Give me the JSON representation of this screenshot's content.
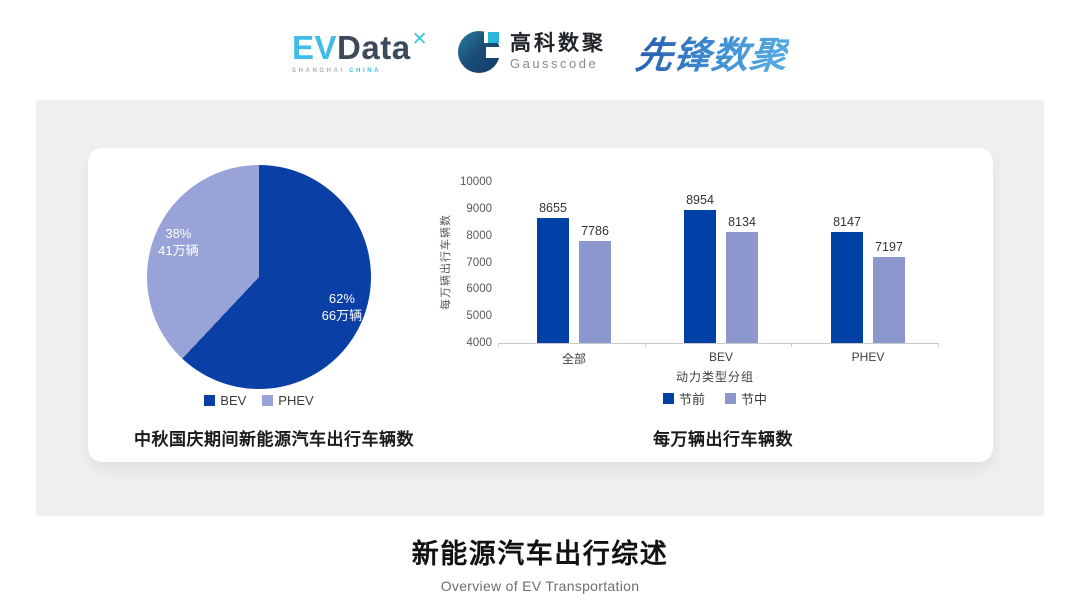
{
  "header": {
    "evdata": {
      "ev": "EV",
      "data": "Data",
      "mark": "✕",
      "sub_gray": "SHANGHAI",
      "sub_cyan": "CHINA"
    },
    "gausscode": {
      "cn": "高科数聚",
      "en": "Gausscode"
    },
    "pioneer": {
      "text": "先锋数聚"
    }
  },
  "chart_data": [
    {
      "type": "pie",
      "title": "中秋国庆期间新能源汽车出行车辆数",
      "legend_position": "bottom",
      "slices": [
        {
          "label": "BEV",
          "percent": 62,
          "percent_label": "62%",
          "value_label": "66万辆",
          "color": "#0a40a6"
        },
        {
          "label": "PHEV",
          "percent": 38,
          "percent_label": "38%",
          "value_label": "41万辆",
          "color": "#98a3d7"
        }
      ]
    },
    {
      "type": "bar",
      "title": "每万辆出行车辆数",
      "xlabel": "动力类型分组",
      "ylabel": "每万辆出行车辆数",
      "ylim": [
        4000,
        10000
      ],
      "yticks": [
        4000,
        5000,
        6000,
        7000,
        8000,
        9000,
        10000
      ],
      "grid": false,
      "legend_position": "bottom",
      "categories": [
        "全部",
        "BEV",
        "PHEV"
      ],
      "series": [
        {
          "name": "节前",
          "color": "#0041a8",
          "values": [
            8655,
            8954,
            8147
          ]
        },
        {
          "name": "节中",
          "color": "#8c97ce",
          "values": [
            7786,
            8134,
            7197
          ]
        }
      ]
    }
  ],
  "footer": {
    "title": "新能源汽车出行综述",
    "subtitle": "Overview of EV Transportation"
  }
}
